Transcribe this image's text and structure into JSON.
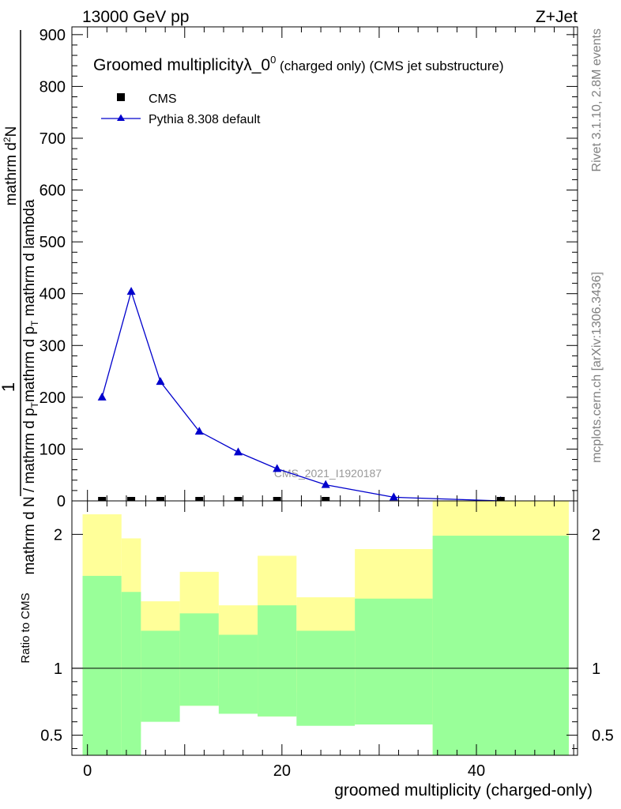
{
  "header": {
    "left": "13000 GeV pp",
    "right": "Z+Jet"
  },
  "side": {
    "rivet": "Rivet 3.1.10,  2.8M events",
    "mcplots": "mcplots.cern.ch [arXiv:1306.3436]"
  },
  "colors": {
    "mc": "#0000cc",
    "band_inner": "#99ff99",
    "band_outer": "#ffff99",
    "data": "#000000",
    "watermark": "#999999"
  },
  "chart_data": [
    {
      "type": "line",
      "title_main": "Groomed multiplicityλ_0",
      "title_sup": "0",
      "title_suffix": " (charged only) (CMS jet substructure)",
      "ylabel_line1": "1",
      "ylabel_line2": "mathrm d N / mathrm d p",
      "ylabel_sub2": "T",
      "ylabel_line2b": "mathrm d p",
      "ylabel_sub2b": "T",
      "ylabel_tail2": " mathrm d lambda",
      "ylabel_num": "mathrm d",
      "ylabel_num_sup": "2",
      "ylabel_num_tail": "N",
      "watermark": "CMS_2021_I1920187",
      "ylim": [
        0,
        915
      ],
      "yticks": [
        0,
        100,
        200,
        300,
        400,
        500,
        600,
        700,
        800,
        900
      ],
      "xlim": [
        -1.6,
        50.4
      ],
      "legend": {
        "placement": "top-left"
      },
      "series": [
        {
          "name": "CMS",
          "marker": "square",
          "x": [
            1.5,
            4.5,
            7.5,
            11.5,
            15.5,
            19.5,
            24.5,
            42.5
          ],
          "y": [
            0,
            0,
            0,
            0,
            0,
            0,
            0,
            0
          ]
        },
        {
          "name": "Pythia 8.308 default",
          "marker": "triangle",
          "x": [
            1.5,
            4.5,
            7.5,
            11.5,
            15.5,
            19.5,
            24.5,
            31.5,
            42.5
          ],
          "y": [
            200,
            404,
            230,
            134,
            94,
            62,
            31,
            7,
            0
          ]
        }
      ]
    },
    {
      "type": "area",
      "ylabel": "Ratio to CMS",
      "xlabel": "groomed multiplicity (charged-only)",
      "ylim": [
        0.35,
        2.25
      ],
      "yticks": [
        0.5,
        1,
        2
      ],
      "xticks": [
        0,
        20,
        40
      ],
      "xlim": [
        -1.6,
        50.4
      ],
      "reference_line": 1,
      "bins": [
        {
          "lo": -0.5,
          "hi": 3.5,
          "inner": [
            0.35,
            1.69
          ],
          "outer": [
            0.35,
            2.15
          ]
        },
        {
          "lo": 3.5,
          "hi": 5.5,
          "inner": [
            0.35,
            1.57
          ],
          "outer": [
            0.53,
            1.97
          ]
        },
        {
          "lo": 5.5,
          "hi": 9.5,
          "inner": [
            0.6,
            1.28
          ],
          "outer": [
            0.83,
            1.5
          ]
        },
        {
          "lo": 9.5,
          "hi": 13.5,
          "inner": [
            0.72,
            1.41
          ],
          "outer": [
            0.72,
            1.72
          ]
        },
        {
          "lo": 13.5,
          "hi": 17.5,
          "inner": [
            0.66,
            1.25
          ],
          "outer": [
            0.85,
            1.47
          ]
        },
        {
          "lo": 17.5,
          "hi": 21.5,
          "inner": [
            0.64,
            1.47
          ],
          "outer": [
            0.64,
            1.84
          ]
        },
        {
          "lo": 21.5,
          "hi": 27.5,
          "inner": [
            0.57,
            1.28
          ],
          "outer": [
            0.82,
            1.53
          ]
        },
        {
          "lo": 27.5,
          "hi": 35.5,
          "inner": [
            0.58,
            1.52
          ],
          "outer": [
            0.58,
            1.89
          ]
        },
        {
          "lo": 35.5,
          "hi": 49.5,
          "inner": [
            0.35,
            1.99
          ],
          "outer": [
            0.35,
            2.25
          ]
        }
      ]
    }
  ]
}
